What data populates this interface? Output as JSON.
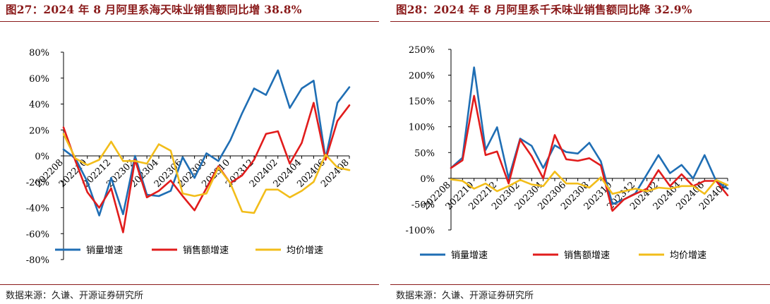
{
  "source_text": "数据来源：久谦、开源证券研究所",
  "chart_data": [
    {
      "type": "line",
      "title": "图27：2024 年 8 月阿里系海天味业销售额同比增 38.8%",
      "source": "数据来源：久谦、开源证券研究所",
      "xlabel": "",
      "ylabel": "",
      "ylim": [
        -80,
        80
      ],
      "yticks": [
        80,
        60,
        40,
        20,
        0,
        -20,
        -40,
        -60,
        -80
      ],
      "ytick_labels": [
        "80%",
        "60%",
        "40%",
        "20%",
        "0%",
        "-20%",
        "-40%",
        "-60%",
        "-80%"
      ],
      "x": [
        "202208",
        "202209",
        "202210",
        "202211",
        "202212",
        "202301",
        "202302",
        "202303",
        "202304",
        "202305",
        "202306",
        "202307",
        "202308",
        "202309",
        "202310",
        "202311",
        "202312",
        "202401",
        "202402",
        "202403",
        "202404",
        "202405",
        "202406",
        "202407",
        "202408"
      ],
      "xtick_labels": [
        "202208",
        "202210",
        "202212",
        "202302",
        "202304",
        "202306",
        "202308",
        "202310",
        "202312",
        "202402",
        "202404",
        "202406",
        "202408"
      ],
      "grid": false,
      "legend_position": "bottom",
      "series": [
        {
          "name": "销量增速",
          "color": "#1f6eb4",
          "values": [
            5,
            -2,
            -20,
            -46,
            -17,
            -45,
            0,
            -30,
            -31,
            -27,
            -1,
            -17,
            2,
            -4,
            12,
            33,
            52,
            47,
            66,
            37,
            52,
            58,
            -2,
            41,
            53
          ]
        },
        {
          "name": "销售额增速",
          "color": "#e11c1c",
          "values": [
            22,
            -4,
            -28,
            -40,
            -25,
            -59,
            -3,
            -32,
            -27,
            -19,
            -31,
            -42,
            -25,
            -8,
            -21,
            -15,
            -3,
            17,
            19,
            -6,
            10,
            41,
            -3,
            27,
            39
          ]
        },
        {
          "name": "均价增速",
          "color": "#f2bd1a",
          "values": [
            17,
            -2,
            -7,
            -3,
            11,
            -4,
            -4,
            -6,
            9,
            4,
            -29,
            -31,
            -29,
            -9,
            -21,
            -43,
            -44,
            -26,
            -26,
            -32,
            -27,
            -20,
            1,
            -9,
            -11
          ]
        }
      ]
    },
    {
      "type": "line",
      "title": "图28：2024 年 8 月阿里系千禾味业销售额同比降 32.9%",
      "source": "数据来源：久谦、开源证券研究所",
      "xlabel": "",
      "ylabel": "",
      "ylim": [
        -100,
        250
      ],
      "yticks": [
        250,
        200,
        150,
        100,
        50,
        0,
        -50,
        -100
      ],
      "ytick_labels": [
        "250%",
        "200%",
        "150%",
        "100%",
        "50%",
        "0%",
        "-50%",
        "-100%"
      ],
      "x": [
        "202208",
        "202209",
        "202210",
        "202211",
        "202212",
        "202301",
        "202302",
        "202303",
        "202304",
        "202305",
        "202306",
        "202307",
        "202308",
        "202309",
        "202310",
        "202311",
        "202312",
        "202401",
        "202402",
        "202403",
        "202404",
        "202405",
        "202406",
        "202407",
        "202408"
      ],
      "xtick_labels": [
        "202208",
        "202210",
        "202212",
        "202302",
        "202304",
        "202306",
        "202308",
        "202310",
        "202312",
        "202402",
        "202404",
        "202406",
        "202408"
      ],
      "grid": false,
      "legend_position": "bottom",
      "series": [
        {
          "name": "销量增速",
          "color": "#1f6eb4",
          "values": [
            20,
            40,
            215,
            55,
            99,
            0,
            77,
            63,
            20,
            64,
            51,
            48,
            69,
            33,
            -50,
            -41,
            -29,
            8,
            45,
            10,
            26,
            0,
            45,
            -5,
            -20
          ]
        },
        {
          "name": "销售额增速",
          "color": "#e11c1c",
          "values": [
            20,
            35,
            160,
            45,
            52,
            -10,
            75,
            43,
            0,
            84,
            37,
            34,
            39,
            25,
            -63,
            -41,
            -30,
            -20,
            16,
            -15,
            8,
            -15,
            -5,
            -5,
            -33
          ]
        },
        {
          "name": "均价增速",
          "color": "#f2bd1a",
          "values": [
            -2,
            -5,
            -20,
            -10,
            -25,
            -15,
            -3,
            -12,
            -15,
            13,
            -10,
            -10,
            -18,
            2,
            -30,
            -25,
            -20,
            -25,
            -18,
            -20,
            -15,
            -15,
            -30,
            -3,
            -13
          ]
        }
      ]
    }
  ]
}
